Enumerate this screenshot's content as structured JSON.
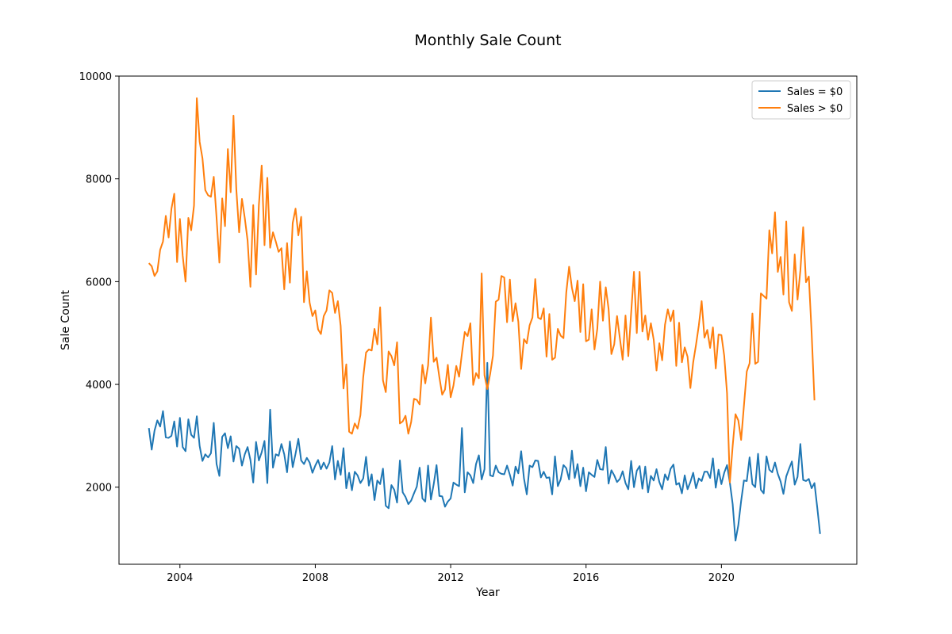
{
  "chart_data": {
    "type": "line",
    "title": "Monthly Sale Count",
    "xlabel": "Year",
    "ylabel": "Sale Count",
    "xlim": [
      2002.2,
      2024.0
    ],
    "ylim": [
      500,
      10000
    ],
    "xticks": [
      2004,
      2008,
      2012,
      2016,
      2020
    ],
    "yticks": [
      2000,
      4000,
      6000,
      8000,
      10000
    ],
    "grid": false,
    "legend_position": "top-right",
    "start_year": 2003.083,
    "step_years": 0.08333,
    "series": [
      {
        "name": "Sales = $0",
        "color": "#1f77b4",
        "values": [
          3150,
          2730,
          3100,
          3300,
          3180,
          3480,
          2970,
          2960,
          3000,
          3280,
          2790,
          3350,
          2780,
          2700,
          3320,
          3020,
          2960,
          3380,
          2800,
          2510,
          2640,
          2580,
          2660,
          3250,
          2450,
          2220,
          2980,
          3050,
          2760,
          2990,
          2500,
          2800,
          2750,
          2420,
          2640,
          2780,
          2530,
          2090,
          2880,
          2520,
          2680,
          2900,
          2080,
          3510,
          2380,
          2640,
          2610,
          2840,
          2640,
          2290,
          2890,
          2390,
          2650,
          2940,
          2520,
          2450,
          2570,
          2480,
          2280,
          2420,
          2530,
          2350,
          2480,
          2360,
          2480,
          2800,
          2150,
          2510,
          2240,
          2760,
          1980,
          2280,
          1940,
          2300,
          2230,
          2080,
          2170,
          2590,
          2030,
          2250,
          1750,
          2130,
          2060,
          2360,
          1640,
          1590,
          2040,
          1950,
          1700,
          2520,
          1900,
          1810,
          1670,
          1740,
          1880,
          2010,
          2380,
          1780,
          1720,
          2420,
          1760,
          2060,
          2430,
          1830,
          1820,
          1620,
          1720,
          1780,
          2090,
          2050,
          2020,
          3150,
          1900,
          2290,
          2230,
          2080,
          2450,
          2620,
          2150,
          2350,
          4420,
          2230,
          2210,
          2420,
          2290,
          2260,
          2250,
          2420,
          2240,
          2030,
          2400,
          2270,
          2700,
          2170,
          1860,
          2420,
          2390,
          2520,
          2510,
          2190,
          2300,
          2180,
          2190,
          1860,
          2600,
          2020,
          2150,
          2430,
          2370,
          2150,
          2710,
          2180,
          2450,
          2020,
          2380,
          1920,
          2290,
          2240,
          2200,
          2530,
          2350,
          2340,
          2780,
          2070,
          2330,
          2230,
          2100,
          2160,
          2310,
          2080,
          1960,
          2510,
          2000,
          2320,
          2410,
          1970,
          2400,
          1900,
          2220,
          2130,
          2350,
          2100,
          1960,
          2250,
          2140,
          2360,
          2440,
          2050,
          2080,
          1880,
          2230,
          1960,
          2100,
          2280,
          1980,
          2170,
          2120,
          2300,
          2300,
          2180,
          2560,
          1990,
          2340,
          2060,
          2280,
          2430,
          2090,
          1670,
          960,
          1260,
          1730,
          2130,
          2120,
          2580,
          2060,
          2000,
          2650,
          1950,
          1880,
          2600,
          2340,
          2290,
          2480,
          2260,
          2110,
          1870,
          2210,
          2360,
          2500,
          2050,
          2200,
          2840,
          2140,
          2120,
          2160,
          1980,
          2080,
          1600,
          1090
        ]
      },
      {
        "name": "Sales > $0",
        "color": "#ff7f0e",
        "values": [
          6360,
          6300,
          6110,
          6200,
          6620,
          6780,
          7280,
          6860,
          7420,
          7710,
          6380,
          7220,
          6500,
          6000,
          7240,
          7000,
          7480,
          9570,
          8720,
          8400,
          7780,
          7680,
          7650,
          8040,
          7240,
          6370,
          7620,
          7080,
          8580,
          7740,
          9230,
          7800,
          6960,
          7610,
          7240,
          6800,
          5900,
          7490,
          6140,
          7490,
          8260,
          6710,
          8020,
          6660,
          6960,
          6780,
          6580,
          6650,
          5850,
          6750,
          5980,
          7140,
          7420,
          6900,
          7260,
          5600,
          6200,
          5590,
          5330,
          5440,
          5070,
          4980,
          5330,
          5440,
          5830,
          5780,
          5390,
          5620,
          5140,
          3920,
          4390,
          3080,
          3040,
          3240,
          3140,
          3400,
          4140,
          4620,
          4680,
          4660,
          5080,
          4780,
          5500,
          4080,
          3850,
          4640,
          4550,
          4370,
          4820,
          3240,
          3280,
          3390,
          3040,
          3270,
          3720,
          3700,
          3610,
          4380,
          4020,
          4370,
          5300,
          4440,
          4520,
          4140,
          3800,
          3900,
          4380,
          3750,
          3980,
          4360,
          4150,
          4600,
          5020,
          4940,
          5190,
          3990,
          4220,
          4120,
          6160,
          4180,
          3910,
          4200,
          4560,
          5610,
          5650,
          6110,
          6080,
          5210,
          6040,
          5230,
          5580,
          5220,
          4300,
          4880,
          4800,
          5150,
          5300,
          6050,
          5300,
          5270,
          5480,
          4540,
          5370,
          4480,
          4520,
          5080,
          4950,
          4900,
          5790,
          6290,
          5880,
          5620,
          6020,
          5020,
          5950,
          4840,
          4870,
          5460,
          4680,
          5080,
          6000,
          5240,
          5890,
          5470,
          4590,
          4780,
          5330,
          4900,
          4480,
          5340,
          4550,
          5390,
          6190,
          5000,
          6190,
          5030,
          5340,
          4870,
          5190,
          4870,
          4270,
          4800,
          4470,
          5160,
          5460,
          5230,
          5440,
          4360,
          5200,
          4430,
          4720,
          4540,
          3930,
          4430,
          4770,
          5150,
          5620,
          4910,
          5060,
          4710,
          5110,
          4310,
          4970,
          4960,
          4560,
          3830,
          2090,
          2800,
          3420,
          3300,
          2920,
          3590,
          4250,
          4410,
          5380,
          4400,
          4440,
          5770,
          5720,
          5670,
          7000,
          6550,
          7350,
          6190,
          6480,
          5750,
          7170,
          5600,
          5430,
          6530,
          5650,
          6210,
          7060,
          5990,
          6100,
          5000,
          3690
        ]
      }
    ]
  }
}
